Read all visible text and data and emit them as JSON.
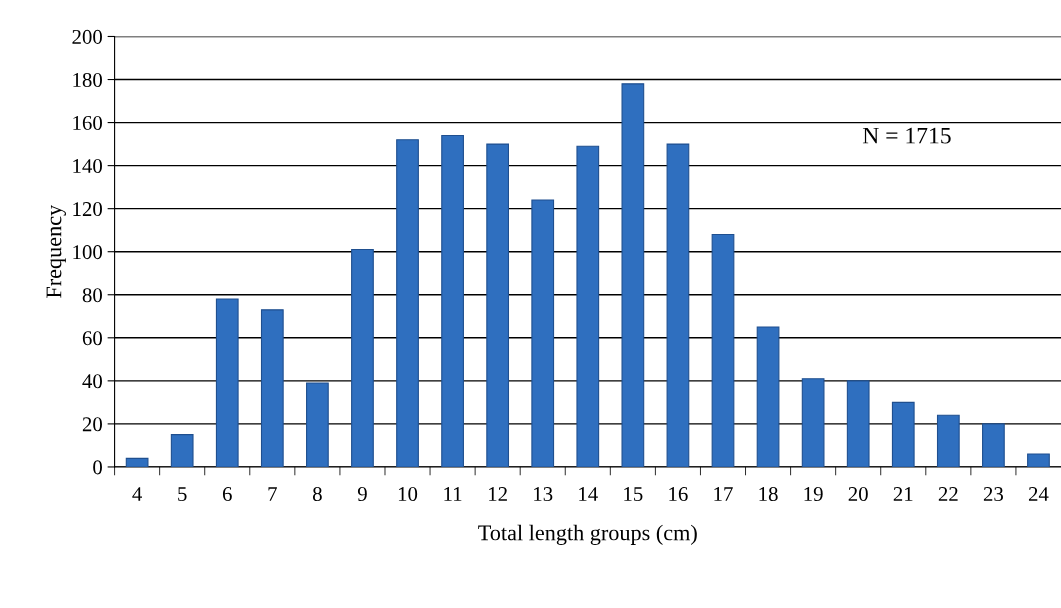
{
  "chart_data": {
    "type": "bar",
    "xlabel": "Total length groups (cm)",
    "ylabel": "Frequency",
    "categories": [
      "4",
      "5",
      "6",
      "7",
      "8",
      "9",
      "10",
      "11",
      "12",
      "13",
      "14",
      "15",
      "16",
      "17",
      "18",
      "19",
      "20",
      "21",
      "22",
      "23",
      "24"
    ],
    "values": [
      4,
      15,
      78,
      73,
      39,
      101,
      152,
      154,
      150,
      124,
      149,
      178,
      150,
      108,
      65,
      41,
      40,
      30,
      24,
      20,
      6
    ],
    "color": "#2f6fbf",
    "ylim": [
      0,
      200
    ],
    "yticks": [
      0,
      20,
      40,
      60,
      80,
      100,
      120,
      140,
      160,
      180,
      200
    ],
    "grid": "y",
    "annotations": [
      "N = 1715"
    ]
  }
}
